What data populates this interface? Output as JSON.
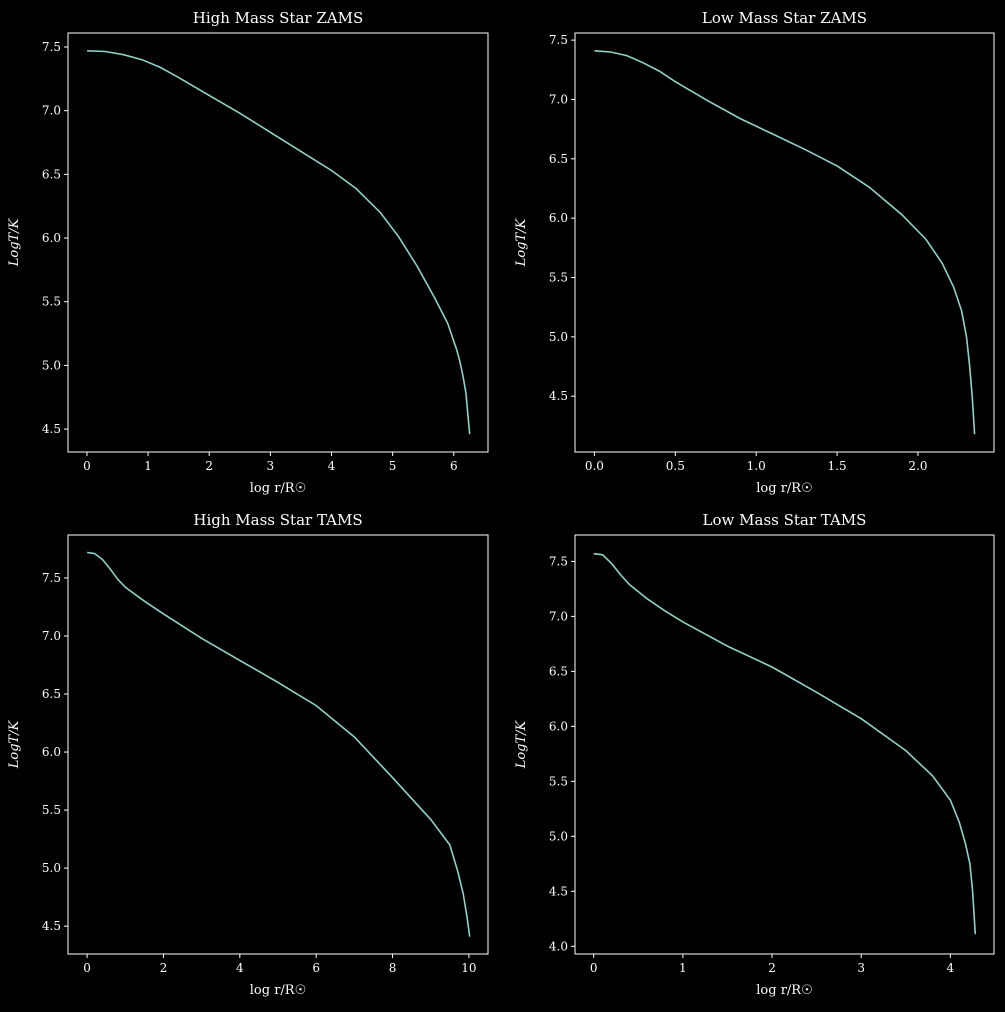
{
  "colors": {
    "background": "#000000",
    "line": "#8dd3c7",
    "text": "#ffffff"
  },
  "chart_data": [
    {
      "type": "line",
      "title": "High Mass Star ZAMS",
      "xlabel": "log r/R☉",
      "ylabel": "LogT/K",
      "xlim": [
        -0.31,
        6.56
      ],
      "ylim": [
        4.32,
        7.61
      ],
      "xticks": [
        0,
        1,
        2,
        3,
        4,
        5,
        6
      ],
      "yticks": [
        4.5,
        5.0,
        5.5,
        6.0,
        6.5,
        7.0,
        7.5
      ],
      "xtick_labels": [
        "0",
        "1",
        "2",
        "3",
        "4",
        "5",
        "6"
      ],
      "ytick_labels": [
        "4.5",
        "5.0",
        "5.5",
        "6.0",
        "6.5",
        "7.0",
        "7.5"
      ],
      "grid": false,
      "series": [
        {
          "x": [
            0,
            0.3,
            0.6,
            0.9,
            1.2,
            1.5,
            2.0,
            2.5,
            3.0,
            3.5,
            4.0,
            4.4,
            4.8,
            5.1,
            5.4,
            5.7,
            5.9,
            6.05,
            6.1,
            6.15,
            6.2,
            6.23,
            6.26
          ],
          "y": [
            7.47,
            7.465,
            7.44,
            7.4,
            7.34,
            7.26,
            7.12,
            6.98,
            6.83,
            6.68,
            6.53,
            6.39,
            6.2,
            6.01,
            5.78,
            5.52,
            5.33,
            5.12,
            5.03,
            4.92,
            4.78,
            4.62,
            4.46
          ]
        }
      ]
    },
    {
      "type": "line",
      "title": "Low Mass Star ZAMS",
      "xlabel": "log r/R☉",
      "ylabel": "LogT/K",
      "xlim": [
        -0.12,
        2.47
      ],
      "ylim": [
        4.03,
        7.56
      ],
      "xticks": [
        0,
        0.5,
        1.0,
        1.5,
        2.0
      ],
      "yticks": [
        4.5,
        5.0,
        5.5,
        6.0,
        6.5,
        7.0,
        7.5
      ],
      "xtick_labels": [
        "0.0",
        "0.5",
        "1.0",
        "1.5",
        "2.0"
      ],
      "ytick_labels": [
        "4.5",
        "5.0",
        "5.5",
        "6.0",
        "6.5",
        "7.0",
        "7.5"
      ],
      "grid": false,
      "series": [
        {
          "x": [
            0,
            0.1,
            0.2,
            0.3,
            0.4,
            0.5,
            0.7,
            0.9,
            1.1,
            1.3,
            1.5,
            1.7,
            1.9,
            2.05,
            2.15,
            2.22,
            2.27,
            2.3,
            2.32,
            2.335,
            2.35
          ],
          "y": [
            7.41,
            7.4,
            7.37,
            7.31,
            7.24,
            7.15,
            6.99,
            6.84,
            6.71,
            6.58,
            6.44,
            6.26,
            6.03,
            5.82,
            5.62,
            5.42,
            5.22,
            5.0,
            4.75,
            4.5,
            4.18
          ]
        }
      ]
    },
    {
      "type": "line",
      "title": "High Mass Star TAMS",
      "xlabel": "log r/R☉",
      "ylabel": "LogT/K",
      "xlim": [
        -0.5,
        10.5
      ],
      "ylim": [
        4.26,
        7.87
      ],
      "xticks": [
        0,
        2,
        4,
        6,
        8,
        10
      ],
      "yticks": [
        4.5,
        5.0,
        5.5,
        6.0,
        6.5,
        7.0,
        7.5
      ],
      "xtick_labels": [
        "0",
        "2",
        "4",
        "6",
        "8",
        "10"
      ],
      "ytick_labels": [
        "4.5",
        "5.0",
        "5.5",
        "6.0",
        "6.5",
        "7.0",
        "7.5"
      ],
      "grid": false,
      "series": [
        {
          "x": [
            0,
            0.2,
            0.4,
            0.6,
            0.8,
            1.0,
            1.5,
            2.0,
            3.0,
            4.0,
            5.0,
            6.0,
            7.0,
            8.0,
            9.0,
            9.5,
            9.7,
            9.85,
            9.95,
            10.02
          ],
          "y": [
            7.72,
            7.71,
            7.66,
            7.58,
            7.49,
            7.42,
            7.3,
            7.19,
            6.98,
            6.79,
            6.6,
            6.4,
            6.13,
            5.78,
            5.42,
            5.2,
            4.98,
            4.78,
            4.58,
            4.41
          ]
        }
      ]
    },
    {
      "type": "line",
      "title": "Low Mass Star TAMS",
      "xlabel": "log r/R☉",
      "ylabel": "LogT/K",
      "xlim": [
        -0.21,
        4.49
      ],
      "ylim": [
        3.93,
        7.74
      ],
      "xticks": [
        0,
        1,
        2,
        3,
        4
      ],
      "yticks": [
        4.0,
        4.5,
        5.0,
        5.5,
        6.0,
        6.5,
        7.0,
        7.5
      ],
      "xtick_labels": [
        "0",
        "1",
        "2",
        "3",
        "4"
      ],
      "ytick_labels": [
        "4.0",
        "4.5",
        "5.0",
        "5.5",
        "6.0",
        "6.5",
        "7.0",
        "7.5"
      ],
      "grid": false,
      "series": [
        {
          "x": [
            0,
            0.1,
            0.2,
            0.3,
            0.4,
            0.6,
            0.8,
            1.0,
            1.5,
            2.0,
            2.5,
            3.0,
            3.5,
            3.8,
            4.0,
            4.1,
            4.17,
            4.22,
            4.25,
            4.28
          ],
          "y": [
            7.57,
            7.56,
            7.48,
            7.38,
            7.29,
            7.16,
            7.05,
            6.95,
            6.73,
            6.54,
            6.31,
            6.07,
            5.78,
            5.55,
            5.33,
            5.13,
            4.93,
            4.75,
            4.5,
            4.11
          ]
        }
      ]
    }
  ]
}
